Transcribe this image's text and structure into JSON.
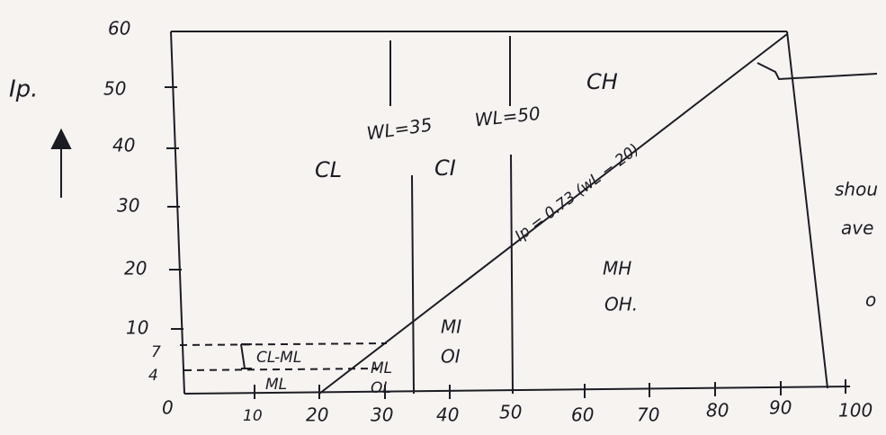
{
  "y_axis": {
    "label": "Ip.",
    "ticks": [
      "60",
      "50",
      "40",
      "30",
      "20",
      "10",
      "7",
      "4"
    ]
  },
  "x_axis": {
    "ticks": [
      "0",
      "10",
      "20",
      "30",
      "40",
      "50",
      "60",
      "70",
      "80",
      "90",
      "100"
    ]
  },
  "dividers": [
    "WL=35",
    "WL=50"
  ],
  "zones": {
    "cl": "CL",
    "ci": "CI",
    "ch": "CH",
    "mi": "MI",
    "oi": "OI",
    "mh": "MH",
    "oh": "OH.",
    "ml": "ML",
    "ol": "OL",
    "cl_ml": "CL-ML",
    "ml_low": "ML"
  },
  "a_line": "Ip = 0.73 (wL − 20)",
  "margin_notes": [
    "shou",
    "ave",
    "o"
  ]
}
